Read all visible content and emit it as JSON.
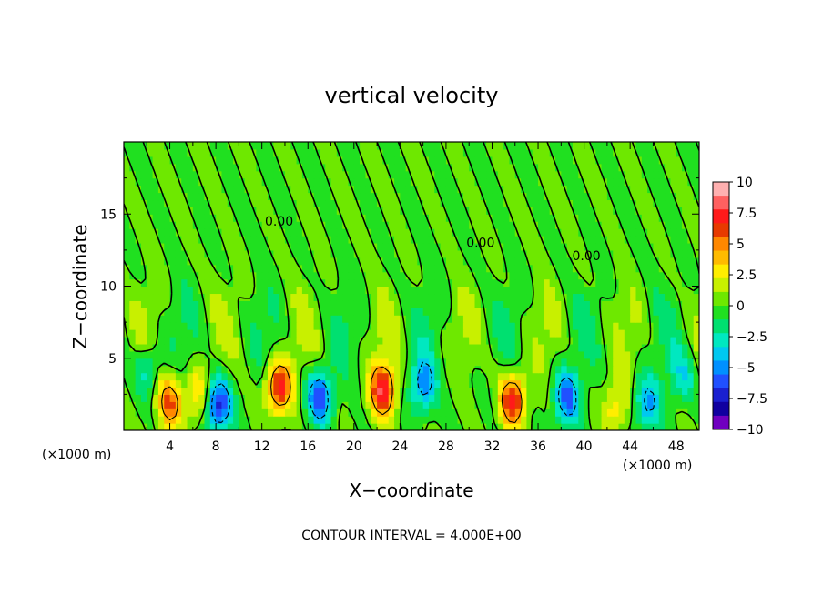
{
  "chart_data": {
    "type": "heatmap",
    "title": "vertical velocity",
    "xlabel": "X−coordinate",
    "ylabel": "Z−coordinate",
    "x_unit_left": "(×1000 m)",
    "x_unit_right": "(×1000 m)",
    "xlim": [
      0,
      50
    ],
    "ylim": [
      0,
      20
    ],
    "xticks": [
      "4",
      "8",
      "12",
      "16",
      "20",
      "24",
      "28",
      "32",
      "36",
      "40",
      "44",
      "48"
    ],
    "yticks": [
      "5",
      "10",
      "15"
    ],
    "colorbar": {
      "vmin": -10,
      "vmax": 10,
      "labels": [
        "10",
        "7.5",
        "5",
        "2.5",
        "0",
        "−2.5",
        "−5",
        "−7.5",
        "−10"
      ],
      "colors": [
        "#ffb0b0",
        "#ff6060",
        "#ff1a1a",
        "#e83a00",
        "#ff8800",
        "#ffbb00",
        "#ffee00",
        "#c8f000",
        "#6ee800",
        "#20e020",
        "#00e070",
        "#00e8c0",
        "#00c8f0",
        "#0090ff",
        "#2050ff",
        "#1a20d0",
        "#1000a0",
        "#7000c0"
      ]
    },
    "contour_label": "0.00",
    "footer": "CONTOUR INTERVAL = 4.000E+00",
    "cells": [
      {
        "x": 4,
        "z": 2.0,
        "w": 5.5
      },
      {
        "x": 6.5,
        "z": 2.5,
        "w": 3.5
      },
      {
        "x": 8.2,
        "z": 1.8,
        "w": -7.5
      },
      {
        "x": 13.5,
        "z": 3.0,
        "w": 7.0
      },
      {
        "x": 17,
        "z": 2.3,
        "w": -6.5
      },
      {
        "x": 22.5,
        "z": 2.8,
        "w": 7.5
      },
      {
        "x": 26,
        "z": 3.2,
        "w": -5.0
      },
      {
        "x": 33.8,
        "z": 2.1,
        "w": 7.0
      },
      {
        "x": 38.5,
        "z": 2.3,
        "w": -6.0
      },
      {
        "x": 42.7,
        "z": 1.5,
        "w": 3.0
      },
      {
        "x": 45.5,
        "z": 1.9,
        "w": -4.5
      },
      {
        "x": 2,
        "z": 4.2,
        "w": -3.0
      },
      {
        "x": 48.5,
        "z": 3.8,
        "w": -3.0
      }
    ]
  }
}
